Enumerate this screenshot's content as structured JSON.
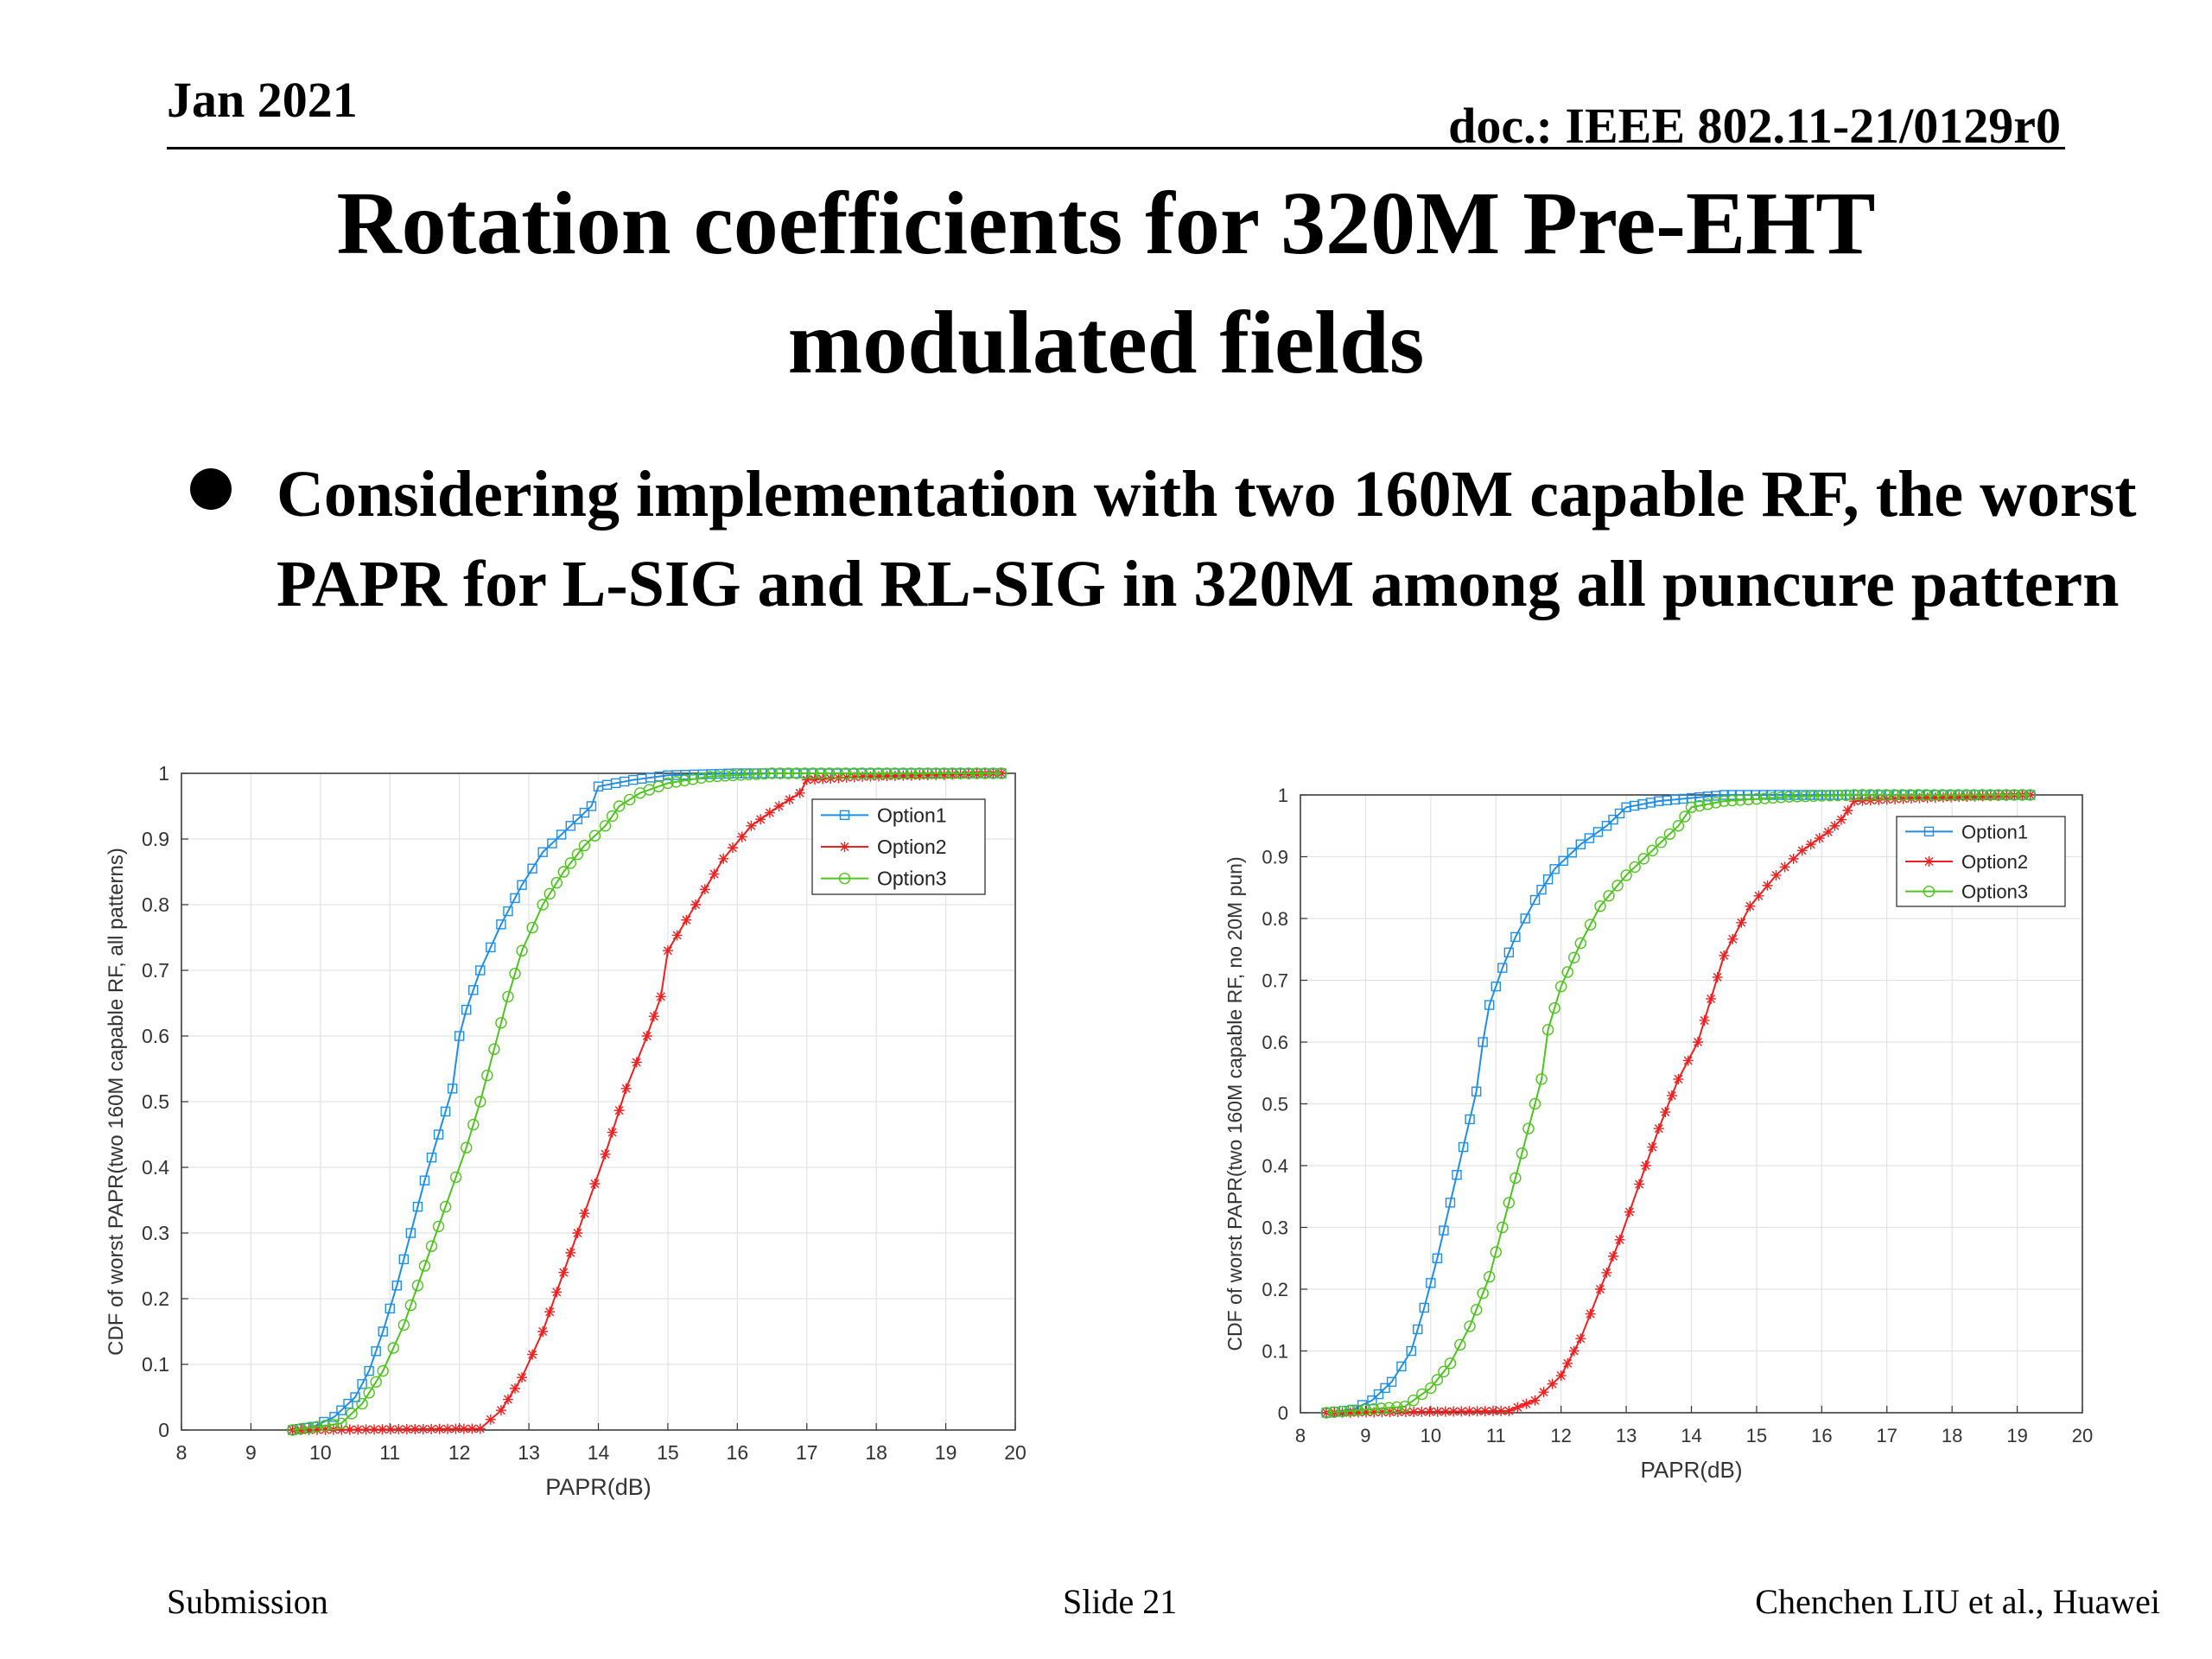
{
  "header": {
    "date": "Jan 2021",
    "doc": "doc.: IEEE 802.11-21/0129r0"
  },
  "title_line1": "Rotation coefficients for 320M Pre-EHT",
  "title_line2": "modulated fields",
  "bullet": "Considering implementation with two 160M capable RF, the worst PAPR for L-SIG and RL-SIG in 320M among all puncure pattern",
  "footer": {
    "left": "Submission",
    "center": "Slide 21",
    "right": "Chenchen LIU et al., Huawei"
  },
  "chart_data": [
    {
      "type": "line",
      "xlabel": "PAPR(dB)",
      "ylabel": "CDF of worst PAPR(two 160M capable RF, all patterns)",
      "xlim": [
        8,
        20
      ],
      "ylim": [
        0,
        1
      ],
      "xticks": [
        "8",
        "9",
        "10",
        "11",
        "12",
        "13",
        "14",
        "15",
        "16",
        "17",
        "18",
        "19",
        "20"
      ],
      "yticks": [
        "0",
        "0.1",
        "0.2",
        "0.3",
        "0.4",
        "0.5",
        "0.6",
        "0.7",
        "0.8",
        "0.9",
        "1"
      ],
      "grid": true,
      "legend_position": "top-right",
      "series": [
        {
          "name": "Option1",
          "color": "#1f8fe6",
          "marker": "square",
          "points": [
            [
              9.6,
              0
            ],
            [
              9.9,
              0.005
            ],
            [
              10.2,
              0.02
            ],
            [
              10.5,
              0.05
            ],
            [
              10.7,
              0.09
            ],
            [
              10.9,
              0.15
            ],
            [
              11.1,
              0.22
            ],
            [
              11.3,
              0.3
            ],
            [
              11.5,
              0.38
            ],
            [
              11.7,
              0.45
            ],
            [
              11.9,
              0.52
            ],
            [
              12.0,
              0.6
            ],
            [
              12.1,
              0.64
            ],
            [
              12.3,
              0.7
            ],
            [
              12.6,
              0.77
            ],
            [
              12.9,
              0.83
            ],
            [
              13.2,
              0.88
            ],
            [
              13.6,
              0.92
            ],
            [
              13.9,
              0.95
            ],
            [
              14.0,
              0.98
            ],
            [
              14.5,
              0.99
            ],
            [
              15.0,
              0.997
            ],
            [
              16.0,
              1
            ],
            [
              19.8,
              1
            ]
          ]
        },
        {
          "name": "Option2",
          "color": "#ee2020",
          "marker": "star",
          "points": [
            [
              9.6,
              0
            ],
            [
              12.3,
              0.002
            ],
            [
              12.6,
              0.03
            ],
            [
              12.9,
              0.08
            ],
            [
              13.2,
              0.15
            ],
            [
              13.5,
              0.24
            ],
            [
              13.8,
              0.33
            ],
            [
              14.1,
              0.42
            ],
            [
              14.4,
              0.52
            ],
            [
              14.7,
              0.6
            ],
            [
              14.9,
              0.66
            ],
            [
              15.0,
              0.73
            ],
            [
              15.4,
              0.8
            ],
            [
              15.8,
              0.87
            ],
            [
              16.2,
              0.92
            ],
            [
              16.6,
              0.95
            ],
            [
              16.9,
              0.97
            ],
            [
              17.0,
              0.99
            ],
            [
              17.8,
              0.995
            ],
            [
              19.8,
              1
            ]
          ]
        },
        {
          "name": "Option3",
          "color": "#4fc41f",
          "marker": "circle",
          "points": [
            [
              9.6,
              0
            ],
            [
              10.3,
              0.01
            ],
            [
              10.6,
              0.04
            ],
            [
              10.9,
              0.09
            ],
            [
              11.2,
              0.16
            ],
            [
              11.5,
              0.25
            ],
            [
              11.8,
              0.34
            ],
            [
              12.1,
              0.43
            ],
            [
              12.3,
              0.5
            ],
            [
              12.5,
              0.58
            ],
            [
              12.7,
              0.66
            ],
            [
              12.9,
              0.73
            ],
            [
              13.2,
              0.8
            ],
            [
              13.5,
              0.85
            ],
            [
              13.8,
              0.89
            ],
            [
              14.1,
              0.92
            ],
            [
              14.3,
              0.95
            ],
            [
              14.6,
              0.97
            ],
            [
              15.0,
              0.985
            ],
            [
              15.6,
              0.995
            ],
            [
              16.5,
              1
            ],
            [
              19.8,
              1
            ]
          ]
        }
      ]
    },
    {
      "type": "line",
      "xlabel": "PAPR(dB)",
      "ylabel": "CDF of worst PAPR(two 160M capable RF, no 20M pun)",
      "xlim": [
        8,
        20
      ],
      "ylim": [
        0,
        1
      ],
      "xticks": [
        "8",
        "9",
        "10",
        "11",
        "12",
        "13",
        "14",
        "15",
        "16",
        "17",
        "18",
        "19",
        "20"
      ],
      "yticks": [
        "0",
        "0.1",
        "0.2",
        "0.3",
        "0.4",
        "0.5",
        "0.6",
        "0.7",
        "0.8",
        "0.9",
        "1"
      ],
      "grid": true,
      "legend_position": "top-right",
      "series": [
        {
          "name": "Option1",
          "color": "#1f8fe6",
          "marker": "square",
          "points": [
            [
              8.4,
              0
            ],
            [
              8.8,
              0.005
            ],
            [
              9.1,
              0.02
            ],
            [
              9.4,
              0.05
            ],
            [
              9.7,
              0.1
            ],
            [
              9.9,
              0.17
            ],
            [
              10.1,
              0.25
            ],
            [
              10.3,
              0.34
            ],
            [
              10.5,
              0.43
            ],
            [
              10.7,
              0.52
            ],
            [
              10.8,
              0.6
            ],
            [
              10.9,
              0.66
            ],
            [
              11.1,
              0.72
            ],
            [
              11.3,
              0.77
            ],
            [
              11.6,
              0.83
            ],
            [
              11.9,
              0.88
            ],
            [
              12.3,
              0.92
            ],
            [
              12.7,
              0.95
            ],
            [
              13.0,
              0.98
            ],
            [
              13.5,
              0.99
            ],
            [
              14.5,
              1
            ],
            [
              19.2,
              1
            ]
          ]
        },
        {
          "name": "Option2",
          "color": "#ee2020",
          "marker": "star",
          "points": [
            [
              8.4,
              0
            ],
            [
              11.2,
              0.003
            ],
            [
              11.6,
              0.02
            ],
            [
              12.0,
              0.06
            ],
            [
              12.3,
              0.12
            ],
            [
              12.6,
              0.2
            ],
            [
              12.9,
              0.28
            ],
            [
              13.2,
              0.37
            ],
            [
              13.5,
              0.46
            ],
            [
              13.8,
              0.54
            ],
            [
              14.1,
              0.6
            ],
            [
              14.3,
              0.67
            ],
            [
              14.5,
              0.74
            ],
            [
              14.9,
              0.82
            ],
            [
              15.3,
              0.87
            ],
            [
              15.7,
              0.91
            ],
            [
              16.1,
              0.94
            ],
            [
              16.3,
              0.96
            ],
            [
              16.5,
              0.99
            ],
            [
              17.5,
              0.995
            ],
            [
              19.2,
              1
            ]
          ]
        },
        {
          "name": "Option3",
          "color": "#4fc41f",
          "marker": "circle",
          "points": [
            [
              8.4,
              0
            ],
            [
              9.6,
              0.01
            ],
            [
              10.0,
              0.04
            ],
            [
              10.3,
              0.08
            ],
            [
              10.6,
              0.14
            ],
            [
              10.9,
              0.22
            ],
            [
              11.1,
              0.3
            ],
            [
              11.3,
              0.38
            ],
            [
              11.5,
              0.46
            ],
            [
              11.7,
              0.54
            ],
            [
              11.8,
              0.62
            ],
            [
              12.0,
              0.69
            ],
            [
              12.3,
              0.76
            ],
            [
              12.6,
              0.82
            ],
            [
              13.0,
              0.87
            ],
            [
              13.4,
              0.91
            ],
            [
              13.8,
              0.95
            ],
            [
              14.0,
              0.98
            ],
            [
              14.5,
              0.99
            ],
            [
              15.5,
              0.997
            ],
            [
              16.5,
              1
            ],
            [
              19.2,
              1
            ]
          ]
        }
      ]
    }
  ]
}
